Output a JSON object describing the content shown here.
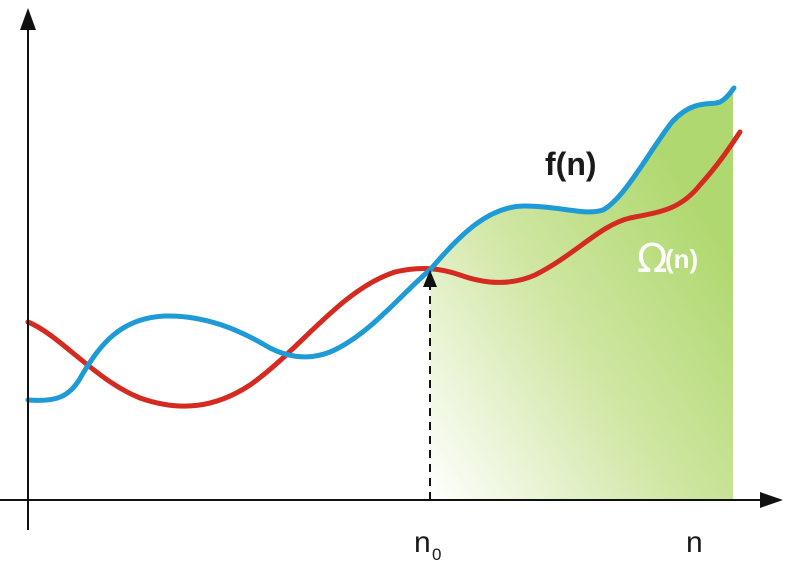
{
  "labels": {
    "f": "f(n)",
    "omega_symbol": "Ω",
    "omega_arg": "(n)",
    "n0_main": "n",
    "n0_sub": "0",
    "n": "n"
  },
  "colors": {
    "f_curve": "#1e9ad6",
    "omega_curve": "#d42a20",
    "shade_dark": "#b0d870",
    "shade_light": "#ffffff",
    "axis": "#111111"
  },
  "icons": {
    "x_axis_arrow": "arrowhead-right",
    "y_axis_arrow": "arrowhead-up",
    "n0_marker_arrow": "arrowhead-up"
  }
}
